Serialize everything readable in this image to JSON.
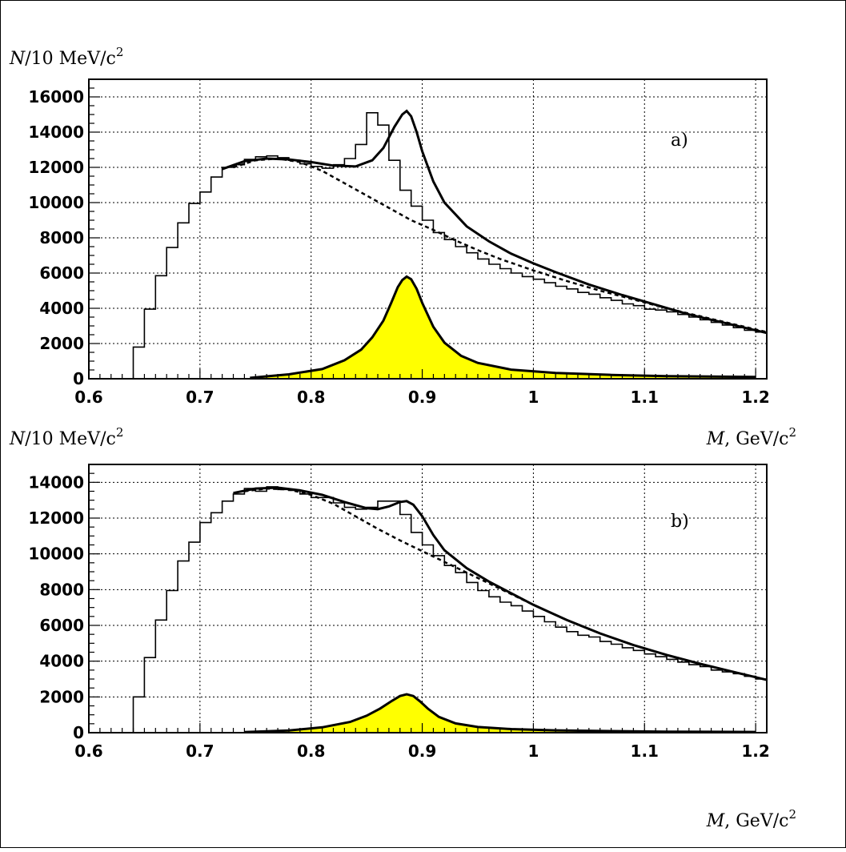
{
  "chart_data": [
    {
      "type": "histogram+line",
      "panel_label": "a)",
      "ylabel": {
        "pre": "N",
        "post": "/10 MeV/c",
        "sup": "2"
      },
      "xlabel": {
        "pre": "M",
        "post": ", GeV/c",
        "sup": "2"
      },
      "xlim": [
        0.6,
        1.21
      ],
      "ylim": [
        0,
        17000
      ],
      "xticks": [
        0.6,
        0.7,
        0.8,
        0.9,
        1.0,
        1.1,
        1.2
      ],
      "xtick_labels": [
        "0.6",
        "0.7",
        "0.8",
        "0.9",
        "1",
        "1.1",
        "1.2"
      ],
      "yticks": [
        0,
        2000,
        4000,
        6000,
        8000,
        10000,
        12000,
        14000,
        16000
      ],
      "ytick_labels": [
        "0",
        "2000",
        "4000",
        "6000",
        "8000",
        "10000",
        "12000",
        "14000",
        "16000"
      ],
      "grid": true,
      "histogram": {
        "bin_width": 0.01,
        "x_start": 0.64,
        "values": [
          1800,
          3950,
          5850,
          7450,
          8850,
          9950,
          10600,
          11450,
          12000,
          12150,
          12450,
          12600,
          12650,
          12550,
          12400,
          12200,
          12050,
          11950,
          12150,
          12500,
          13300,
          15100,
          14400,
          12400,
          10700,
          9800,
          9000,
          8300,
          7900,
          7500,
          7150,
          6800,
          6500,
          6250,
          6000,
          5800,
          5650,
          5450,
          5250,
          5100,
          4900,
          4800,
          4600,
          4450,
          4250,
          4150,
          3950,
          3900,
          3800,
          3650,
          3500,
          3350,
          3200,
          3050,
          2900,
          2750,
          2650
        ]
      },
      "fit_total": {
        "x": [
          0.72,
          0.74,
          0.76,
          0.78,
          0.8,
          0.82,
          0.84,
          0.855,
          0.865,
          0.875,
          0.882,
          0.886,
          0.89,
          0.895,
          0.9,
          0.91,
          0.92,
          0.94,
          0.96,
          0.98,
          1.0,
          1.02,
          1.05,
          1.08,
          1.11,
          1.14,
          1.17,
          1.21
        ],
        "y": [
          11900,
          12350,
          12500,
          12450,
          12300,
          12100,
          12050,
          12400,
          13100,
          14300,
          15000,
          15200,
          14900,
          14000,
          12900,
          11200,
          10000,
          8650,
          7800,
          7100,
          6550,
          6050,
          5350,
          4750,
          4200,
          3650,
          3200,
          2600
        ]
      },
      "fit_background": {
        "x": [
          0.73,
          0.75,
          0.77,
          0.79,
          0.81,
          0.83,
          0.85,
          0.87,
          0.89,
          0.91,
          0.93,
          0.95,
          0.97,
          1.0,
          1.03,
          1.06,
          1.09,
          1.12,
          1.15,
          1.18,
          1.21
        ],
        "y": [
          12000,
          12400,
          12500,
          12300,
          11800,
          11100,
          10400,
          9700,
          9000,
          8450,
          7850,
          7300,
          6800,
          6150,
          5550,
          5000,
          4500,
          4000,
          3550,
          3100,
          2650
        ]
      },
      "fit_signal": {
        "x": [
          0.745,
          0.78,
          0.81,
          0.83,
          0.845,
          0.855,
          0.865,
          0.872,
          0.878,
          0.882,
          0.886,
          0.89,
          0.895,
          0.9,
          0.91,
          0.92,
          0.935,
          0.95,
          0.98,
          1.02,
          1.07,
          1.12,
          1.2
        ],
        "y": [
          50,
          250,
          550,
          1050,
          1650,
          2350,
          3300,
          4300,
          5200,
          5600,
          5800,
          5650,
          5100,
          4300,
          2950,
          2050,
          1300,
          900,
          520,
          330,
          220,
          150,
          100
        ]
      }
    },
    {
      "type": "histogram+line",
      "panel_label": "b)",
      "ylabel": {
        "pre": "N",
        "post": "/10 MeV/c",
        "sup": "2"
      },
      "xlabel": {
        "pre": "M",
        "post": ", GeV/c",
        "sup": "2"
      },
      "xlim": [
        0.6,
        1.21
      ],
      "ylim": [
        0,
        15000
      ],
      "xticks": [
        0.6,
        0.7,
        0.8,
        0.9,
        1.0,
        1.1,
        1.2
      ],
      "xtick_labels": [
        "0.6",
        "0.7",
        "0.8",
        "0.9",
        "1",
        "1.1",
        "1.2"
      ],
      "yticks": [
        0,
        2000,
        4000,
        6000,
        8000,
        10000,
        12000,
        14000
      ],
      "ytick_labels": [
        "0",
        "2000",
        "4000",
        "6000",
        "8000",
        "10000",
        "12000",
        "14000"
      ],
      "grid": true,
      "histogram": {
        "bin_width": 0.01,
        "x_start": 0.64,
        "values": [
          2000,
          4200,
          6300,
          7950,
          9600,
          10650,
          11750,
          12300,
          12950,
          13350,
          13650,
          13500,
          13750,
          13600,
          13550,
          13350,
          13150,
          13150,
          12850,
          12600,
          12500,
          12600,
          12950,
          12950,
          12200,
          11200,
          10500,
          9900,
          9350,
          8950,
          8400,
          7950,
          7600,
          7300,
          7100,
          6800,
          6500,
          6200,
          5900,
          5650,
          5450,
          5350,
          5100,
          4950,
          4750,
          4600,
          4400,
          4250,
          4100,
          3950,
          3800,
          3700,
          3500,
          3400,
          3300,
          3150,
          3000
        ]
      },
      "fit_total": {
        "x": [
          0.73,
          0.75,
          0.77,
          0.79,
          0.81,
          0.83,
          0.85,
          0.86,
          0.87,
          0.88,
          0.886,
          0.892,
          0.9,
          0.91,
          0.92,
          0.94,
          0.96,
          0.98,
          1.0,
          1.03,
          1.06,
          1.09,
          1.12,
          1.15,
          1.18,
          1.21
        ],
        "y": [
          13400,
          13650,
          13700,
          13550,
          13300,
          12900,
          12550,
          12500,
          12650,
          12900,
          12950,
          12750,
          12100,
          11050,
          10200,
          9200,
          8450,
          7800,
          7150,
          6300,
          5550,
          4900,
          4350,
          3850,
          3400,
          2950
        ]
      },
      "fit_background": {
        "x": [
          0.74,
          0.76,
          0.78,
          0.8,
          0.82,
          0.84,
          0.86,
          0.88,
          0.9,
          0.92,
          0.94,
          0.96,
          0.98,
          1.0,
          1.03,
          1.06,
          1.09,
          1.12,
          1.15,
          1.18,
          1.21
        ],
        "y": [
          13500,
          13650,
          13600,
          13300,
          12800,
          12100,
          11400,
          10750,
          10150,
          9550,
          8950,
          8350,
          7750,
          7150,
          6300,
          5550,
          4900,
          4350,
          3850,
          3400,
          2950
        ]
      },
      "fit_signal": {
        "x": [
          0.74,
          0.78,
          0.81,
          0.835,
          0.85,
          0.862,
          0.872,
          0.88,
          0.886,
          0.892,
          0.898,
          0.905,
          0.915,
          0.93,
          0.95,
          0.98,
          1.02,
          1.07,
          1.12,
          1.2
        ],
        "y": [
          30,
          120,
          300,
          600,
          950,
          1350,
          1750,
          2050,
          2150,
          2050,
          1750,
          1350,
          880,
          520,
          320,
          200,
          130,
          90,
          60,
          40
        ]
      }
    }
  ]
}
